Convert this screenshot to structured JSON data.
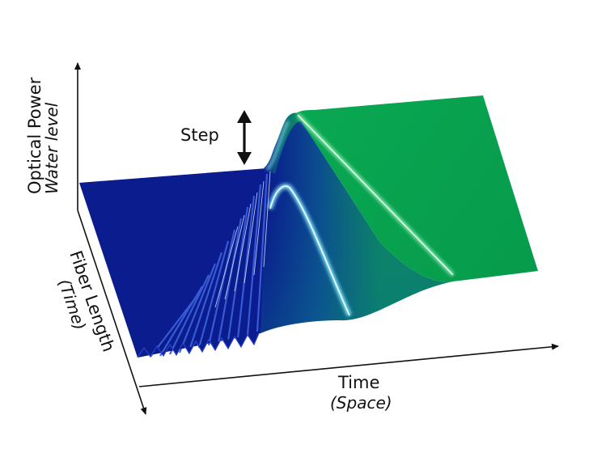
{
  "figure": {
    "axes": {
      "vertical": {
        "label": "Optical Power",
        "sublabel": "Water level"
      },
      "depth": {
        "label": "Fiber Length",
        "sublabel": "(Time)"
      },
      "horizontal": {
        "label": "Time",
        "sublabel": "(Space)"
      }
    },
    "annotation": {
      "label": "Step"
    },
    "colors": {
      "low_level": "#0a1c8e",
      "high_level": "#07a24f",
      "wave_crest": "#8ff0ff",
      "axis": "#111111"
    }
  }
}
